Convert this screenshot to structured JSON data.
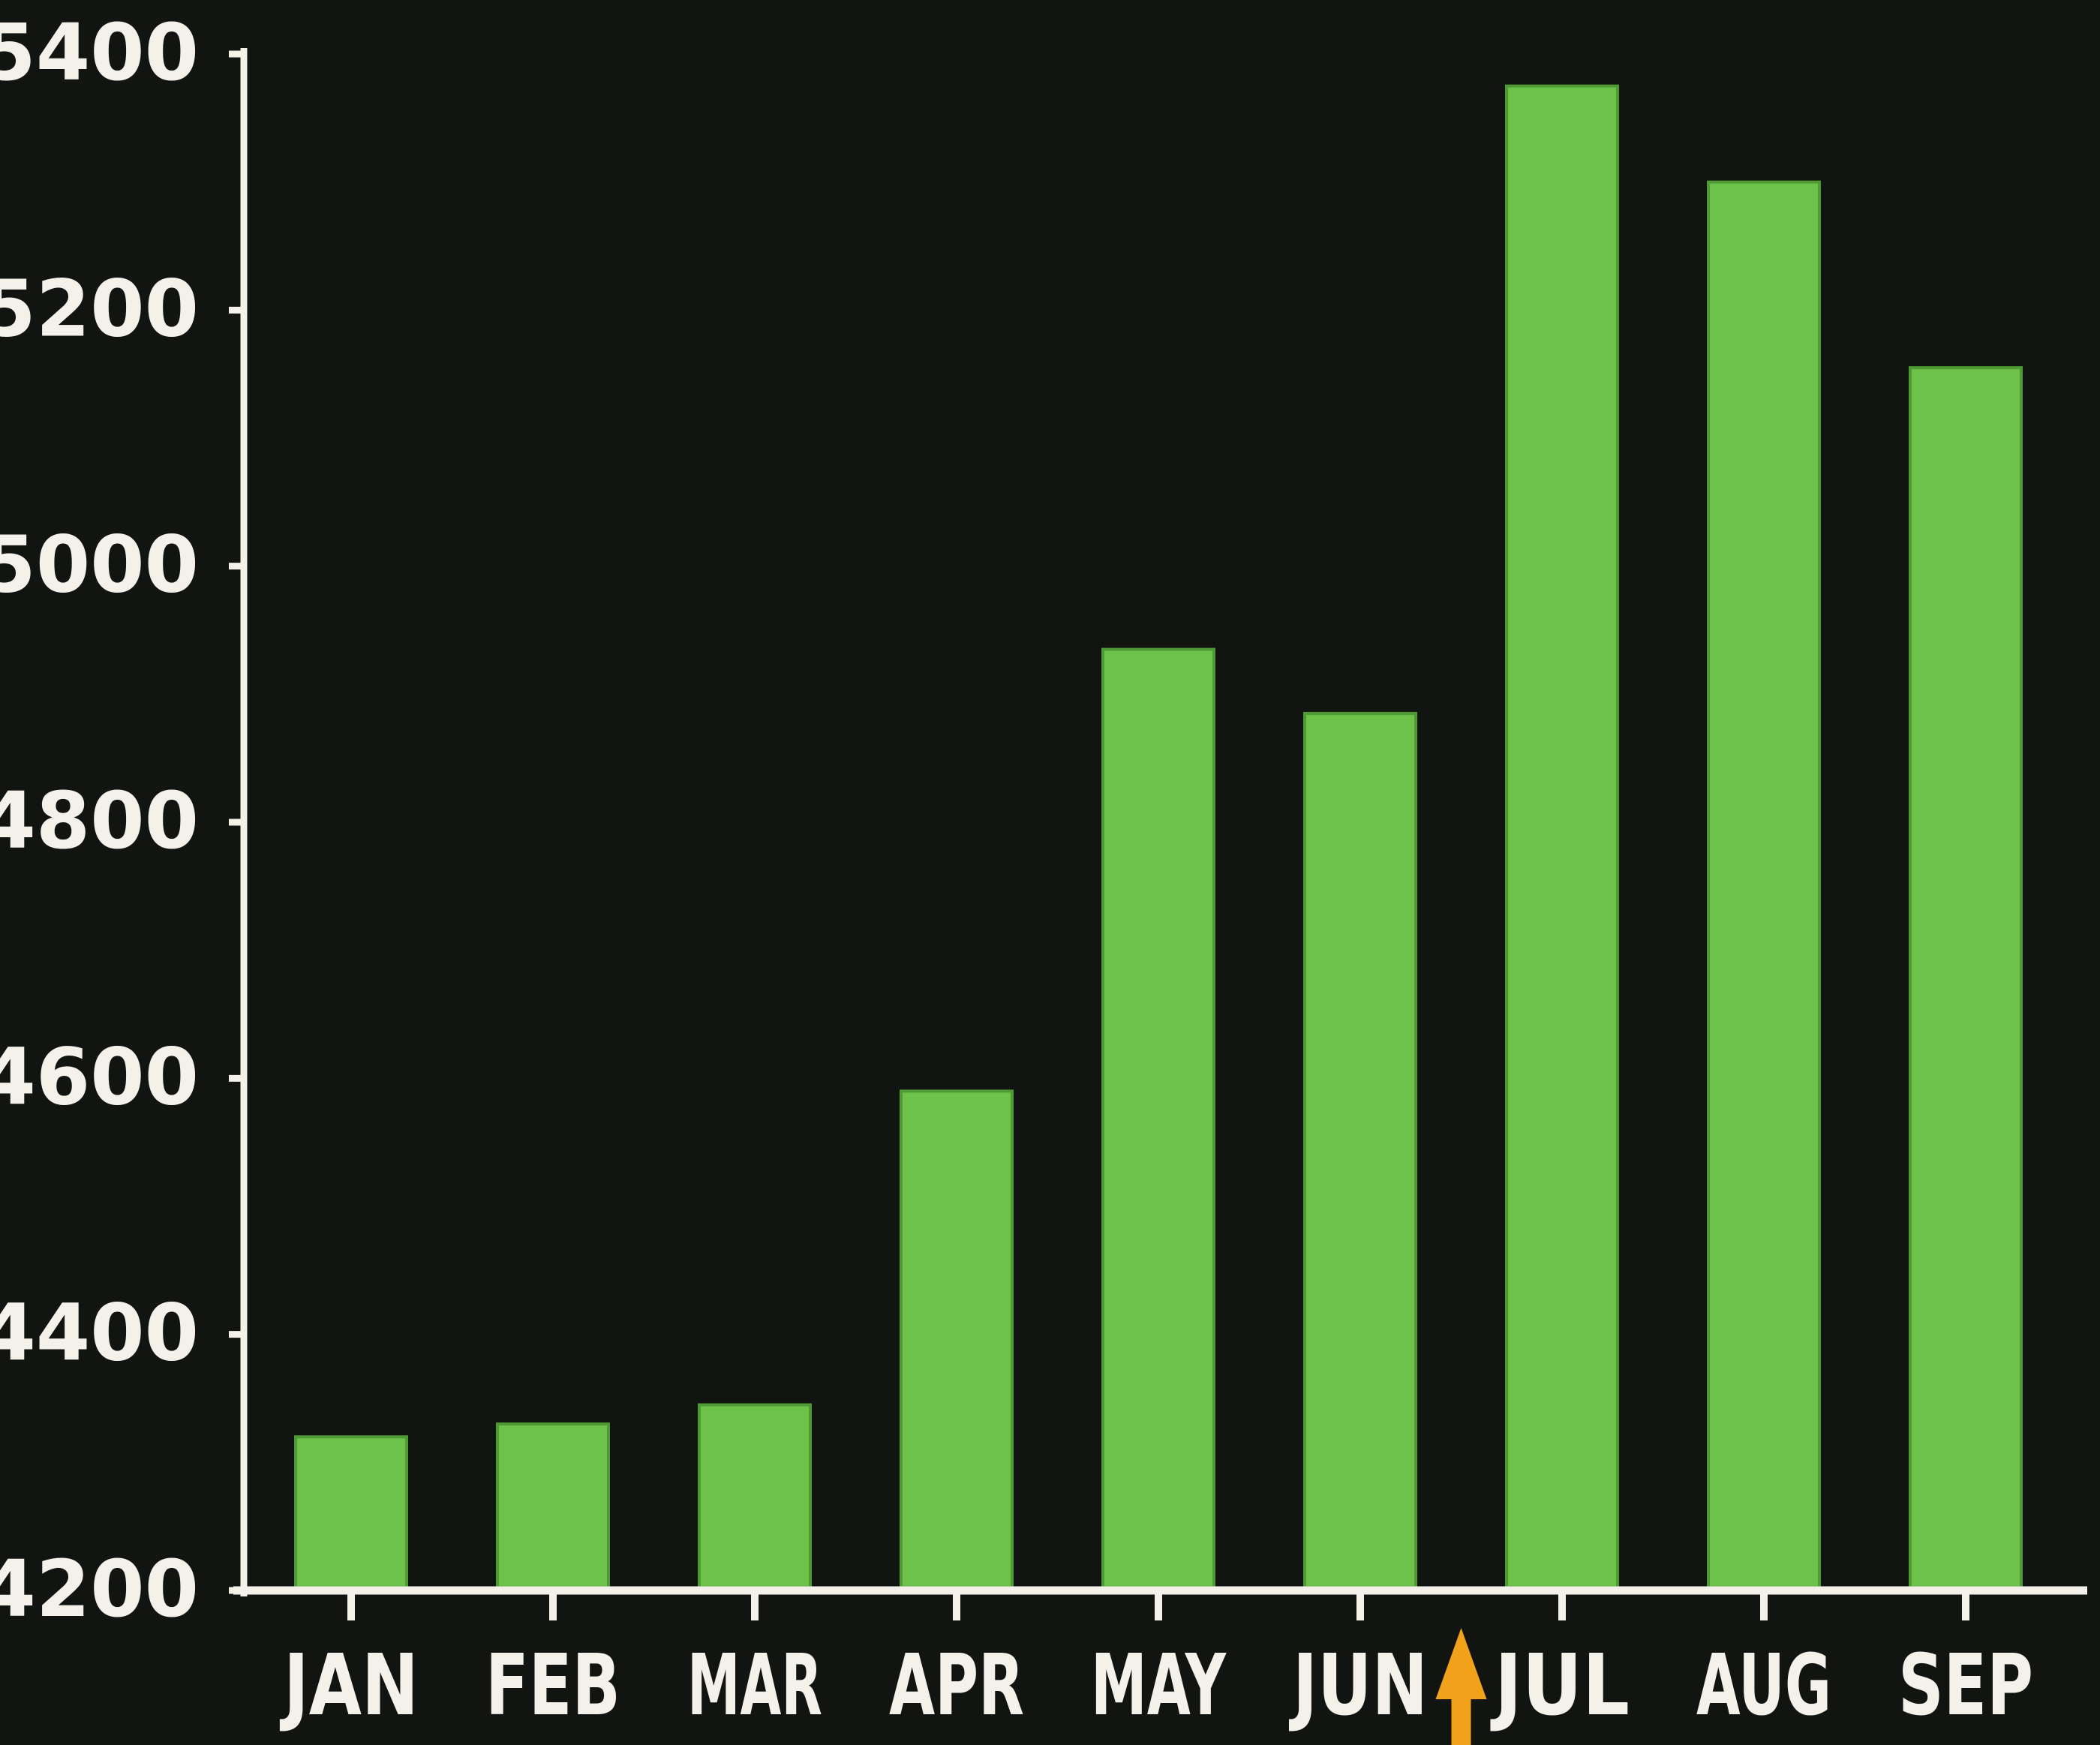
{
  "colors": {
    "background": "#111410",
    "axis": "#f4f1ea",
    "bar": "#6dc24a",
    "bar_edge": "#4f9a34",
    "marker": "#f2a21a"
  },
  "chart_data": {
    "type": "bar",
    "title": "",
    "xlabel": "",
    "ylabel": "",
    "categories": [
      "JAN",
      "FEB",
      "MAR",
      "APR",
      "MAY",
      "JUN",
      "JUL",
      "AUG",
      "SEP"
    ],
    "values": [
      4320,
      4330,
      4345,
      4590,
      4935,
      4885,
      5375,
      5300,
      5155
    ],
    "ylim": [
      4200,
      5400
    ],
    "yticks": [
      4200,
      4400,
      4600,
      4800,
      5000,
      5200,
      5400
    ],
    "ytick_labels": [
      "4200",
      "4400",
      "4600",
      "4800",
      "5000",
      "5200",
      "5400"
    ],
    "grid": false,
    "legend": "none",
    "marker": {
      "type": "up-arrow",
      "between": [
        "JUN",
        "JUL"
      ],
      "color": "#f2a21a"
    }
  }
}
